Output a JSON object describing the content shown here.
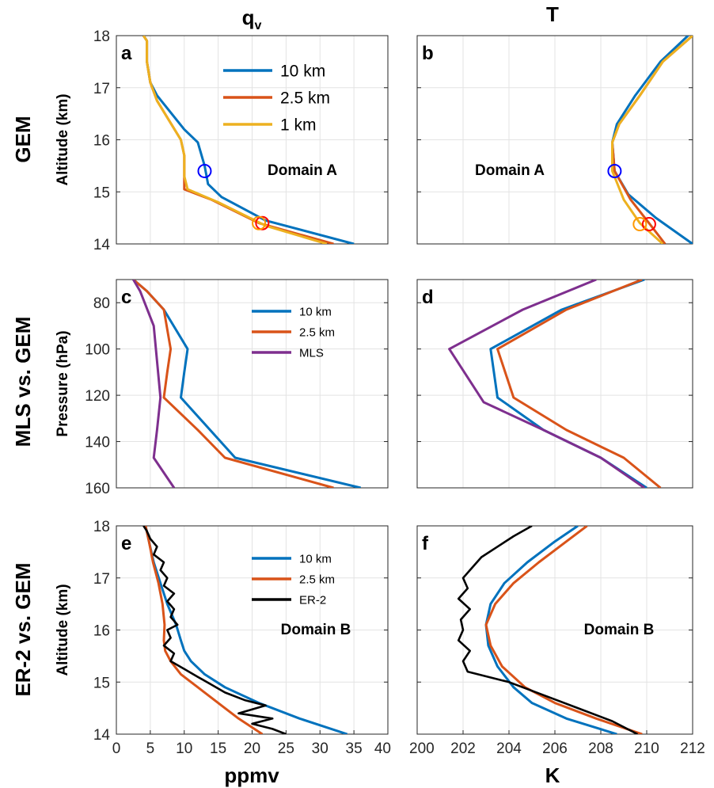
{
  "figure": {
    "col_titles": {
      "qv_main": "q",
      "qv_sub": "v",
      "t": "T"
    },
    "row_labels": {
      "r1": "GEM",
      "r2": "MLS vs. GEM",
      "r3": "ER-2 vs. GEM"
    },
    "bottom_labels": {
      "left": "ppmv",
      "right": "K"
    }
  },
  "colors": {
    "s10km": "#0072BD",
    "s25km": "#D95319",
    "s1km": "#EDB120",
    "mls": "#7E2F8E",
    "er2": "#000000",
    "marker_blue": "#0000FF",
    "marker_red": "#FF0000",
    "marker_orange": "#FF9900",
    "grid": "#E3E3E3",
    "axis": "#262626"
  },
  "chart_data": [
    {
      "id": "a",
      "panel_label": "a",
      "type": "line",
      "ylabel": "Altitude (km)",
      "xlabel": "",
      "annotation": "Domain A",
      "xlim": [
        0,
        40
      ],
      "ylim": [
        14,
        18
      ],
      "yticks": [
        14,
        15,
        16,
        17,
        18
      ],
      "grid": true,
      "legend": "top-right",
      "series": [
        {
          "name": "10 km",
          "color_key": "s10km",
          "x": [
            35,
            22,
            15.5,
            13.5,
            13,
            12,
            10,
            6,
            5,
            4.5,
            4.5,
            4
          ],
          "y": [
            14,
            14.45,
            14.9,
            15.15,
            15.5,
            15.95,
            16.2,
            16.85,
            17.1,
            17.5,
            17.9,
            18
          ]
        },
        {
          "name": "2.5 km",
          "color_key": "s25km",
          "x": [
            32,
            21,
            14,
            10,
            10,
            10,
            9.5,
            6,
            5,
            4.5,
            4.5,
            4
          ],
          "y": [
            14,
            14.4,
            14.85,
            15.05,
            15.3,
            15.7,
            16,
            16.75,
            17.1,
            17.5,
            17.9,
            18
          ]
        },
        {
          "name": "1 km",
          "color_key": "s1km",
          "x": [
            31,
            22,
            15,
            10.5,
            10,
            10,
            9.5,
            6,
            5,
            4.5,
            4.5,
            4
          ],
          "y": [
            14,
            14.35,
            14.8,
            15.05,
            15.3,
            15.7,
            16,
            16.75,
            17.1,
            17.5,
            17.9,
            18
          ]
        }
      ],
      "markers": [
        {
          "x": 13,
          "y": 15.4,
          "color_key": "marker_blue"
        },
        {
          "x": 21.5,
          "y": 14.4,
          "color_key": "marker_red"
        },
        {
          "x": 21,
          "y": 14.4,
          "color_key": "marker_orange"
        }
      ]
    },
    {
      "id": "b",
      "panel_label": "b",
      "type": "line",
      "ylabel": "",
      "xlabel": "",
      "annotation": "Domain A",
      "xlim": [
        200,
        212
      ],
      "ylim": [
        14,
        18
      ],
      "yticks": [
        14,
        15,
        16,
        17,
        18
      ],
      "grid": true,
      "series": [
        {
          "name": "10 km",
          "color_key": "s10km",
          "x": [
            212,
            210.4,
            209.2,
            208.6,
            208.5,
            208.7,
            209.5,
            210.6,
            211.8
          ],
          "y": [
            14,
            14.5,
            14.95,
            15.4,
            15.95,
            16.3,
            16.85,
            17.5,
            18
          ]
        },
        {
          "name": "2.5 km",
          "color_key": "s25km",
          "x": [
            210.8,
            210.1,
            209.3,
            208.6,
            208.5,
            208.8,
            209.7,
            210.7,
            212
          ],
          "y": [
            14,
            14.4,
            14.85,
            15.4,
            15.95,
            16.3,
            16.85,
            17.5,
            18
          ]
        },
        {
          "name": "1 km",
          "color_key": "s1km",
          "x": [
            210.7,
            209.7,
            209,
            208.5,
            208.5,
            208.8,
            209.7,
            210.7,
            212
          ],
          "y": [
            14,
            14.4,
            14.85,
            15.4,
            15.95,
            16.3,
            16.85,
            17.5,
            18
          ]
        }
      ],
      "markers": [
        {
          "x": 208.6,
          "y": 15.4,
          "color_key": "marker_blue"
        },
        {
          "x": 210.1,
          "y": 14.38,
          "color_key": "marker_red"
        },
        {
          "x": 209.7,
          "y": 14.38,
          "color_key": "marker_orange"
        }
      ]
    },
    {
      "id": "c",
      "panel_label": "c",
      "type": "line",
      "ylabel": "Pressure (hPa)",
      "xlabel": "",
      "annotation": "",
      "xlim": [
        0,
        40
      ],
      "ylim": [
        160,
        70
      ],
      "yticks": [
        80,
        100,
        120,
        140,
        160
      ],
      "grid": true,
      "legend": "top-right",
      "series": [
        {
          "name": "10 km",
          "color_key": "s10km",
          "x": [
            2.5,
            4.5,
            7,
            10.5,
            10,
            9.5,
            17.5,
            36
          ],
          "y": [
            70,
            75,
            83,
            100,
            110,
            121,
            147,
            160
          ]
        },
        {
          "name": "2.5 km",
          "color_key": "s25km",
          "x": [
            2.5,
            4.5,
            7,
            8,
            7.5,
            7,
            12,
            16,
            32
          ],
          "y": [
            70,
            75,
            83,
            100,
            110,
            121,
            135,
            147,
            160
          ]
        },
        {
          "name": "MLS",
          "color_key": "mls",
          "x": [
            2.5,
            3.5,
            5.5,
            6.5,
            6,
            5.5,
            8.5
          ],
          "y": [
            70,
            75,
            90,
            121,
            135,
            147,
            160
          ]
        }
      ]
    },
    {
      "id": "d",
      "panel_label": "d",
      "type": "line",
      "ylabel": "",
      "xlabel": "",
      "annotation": "",
      "xlim": [
        200,
        212
      ],
      "ylim": [
        160,
        70
      ],
      "yticks": [
        80,
        100,
        120,
        140,
        160
      ],
      "grid": true,
      "series": [
        {
          "name": "10 km",
          "color_key": "s10km",
          "x": [
            209.9,
            206.3,
            203.2,
            203.5,
            205.5,
            208,
            210
          ],
          "y": [
            70,
            83,
            100,
            121,
            135,
            147,
            160
          ]
        },
        {
          "name": "2.5 km",
          "color_key": "s25km",
          "x": [
            209.8,
            206.5,
            203.5,
            204.2,
            206.5,
            209,
            210.6
          ],
          "y": [
            70,
            83,
            100,
            121,
            135,
            147,
            160
          ]
        },
        {
          "name": "MLS",
          "color_key": "mls",
          "x": [
            207.8,
            204.6,
            201.4,
            202.9,
            205.5,
            208,
            209.9
          ],
          "y": [
            70,
            83,
            100,
            123,
            135,
            147,
            160
          ]
        }
      ]
    },
    {
      "id": "e",
      "panel_label": "e",
      "type": "line",
      "ylabel": "Altitude (km)",
      "xlabel": "ppmv",
      "annotation": "Domain B",
      "xlim": [
        0,
        40
      ],
      "xticks": [
        0,
        5,
        10,
        15,
        20,
        25,
        30,
        35,
        40
      ],
      "ylim": [
        14,
        18
      ],
      "yticks": [
        14,
        15,
        16,
        17,
        18
      ],
      "grid": true,
      "legend": "top-right",
      "series": [
        {
          "name": "10 km",
          "color_key": "s10km",
          "x": [
            34,
            27,
            21,
            16,
            13,
            11,
            10,
            9.5,
            8.8,
            7.5,
            6.5,
            5.5,
            4.8,
            4.3
          ],
          "y": [
            14,
            14.3,
            14.6,
            14.9,
            15.15,
            15.4,
            15.6,
            15.8,
            16.1,
            16.5,
            16.9,
            17.3,
            17.7,
            18
          ]
        },
        {
          "name": "2.5 km",
          "color_key": "s25km",
          "x": [
            21.5,
            18,
            15,
            12,
            9.5,
            8,
            7.2,
            7,
            7.1,
            6.8,
            6.2,
            5.4,
            4.8,
            4.3
          ],
          "y": [
            14,
            14.3,
            14.6,
            14.9,
            15.15,
            15.4,
            15.6,
            15.8,
            16.1,
            16.5,
            16.9,
            17.3,
            17.7,
            18
          ]
        },
        {
          "name": "ER-2",
          "color_key": "er2",
          "x": [
            25,
            23,
            20,
            23,
            18,
            22,
            19,
            16,
            14,
            12,
            10,
            8,
            8.5,
            7,
            8,
            7.5,
            9,
            8,
            8.5,
            7.5,
            8.5,
            7,
            7.5,
            6.5,
            7,
            5.5,
            6,
            5,
            4.5,
            4
          ],
          "y": [
            14,
            14.1,
            14.2,
            14.3,
            14.4,
            14.55,
            14.65,
            14.8,
            14.95,
            15.1,
            15.25,
            15.4,
            15.55,
            15.7,
            15.85,
            16,
            16.1,
            16.25,
            16.4,
            16.55,
            16.7,
            16.85,
            17,
            17.15,
            17.3,
            17.45,
            17.6,
            17.75,
            17.9,
            18
          ]
        }
      ]
    },
    {
      "id": "f",
      "panel_label": "f",
      "type": "line",
      "ylabel": "",
      "xlabel": "K",
      "annotation": "Domain B",
      "xlim": [
        200,
        212
      ],
      "xticks": [
        200,
        202,
        204,
        206,
        208,
        210,
        212
      ],
      "ylim": [
        14,
        18
      ],
      "yticks": [
        14,
        15,
        16,
        17,
        18
      ],
      "grid": true,
      "series": [
        {
          "name": "10 km",
          "color_key": "s10km",
          "x": [
            208.7,
            206.5,
            205,
            204.2,
            203.5,
            203.1,
            203,
            203.2,
            203.8,
            204.8,
            206,
            207
          ],
          "y": [
            14,
            14.3,
            14.6,
            14.9,
            15.3,
            15.7,
            16.1,
            16.5,
            16.9,
            17.3,
            17.7,
            18
          ]
        },
        {
          "name": "2.5 km",
          "color_key": "s25km",
          "x": [
            209.8,
            207.8,
            206,
            204.7,
            203.7,
            203.2,
            203,
            203.4,
            204.2,
            205.3,
            206.5,
            207.4
          ],
          "y": [
            14,
            14.3,
            14.6,
            14.9,
            15.3,
            15.7,
            16.1,
            16.5,
            16.9,
            17.3,
            17.7,
            18
          ]
        },
        {
          "name": "ER-2",
          "color_key": "er2",
          "x": [
            209.6,
            208.5,
            207,
            205.5,
            204,
            202.2,
            202,
            202.3,
            201.8,
            202,
            201.9,
            202.3,
            201.8,
            202.2,
            202,
            202.4,
            202.8,
            203.5,
            204.2,
            205
          ],
          "y": [
            14,
            14.25,
            14.5,
            14.75,
            15,
            15.2,
            15.4,
            15.6,
            15.8,
            16,
            16.2,
            16.4,
            16.6,
            16.8,
            17,
            17.2,
            17.4,
            17.6,
            17.8,
            18
          ]
        }
      ]
    }
  ]
}
